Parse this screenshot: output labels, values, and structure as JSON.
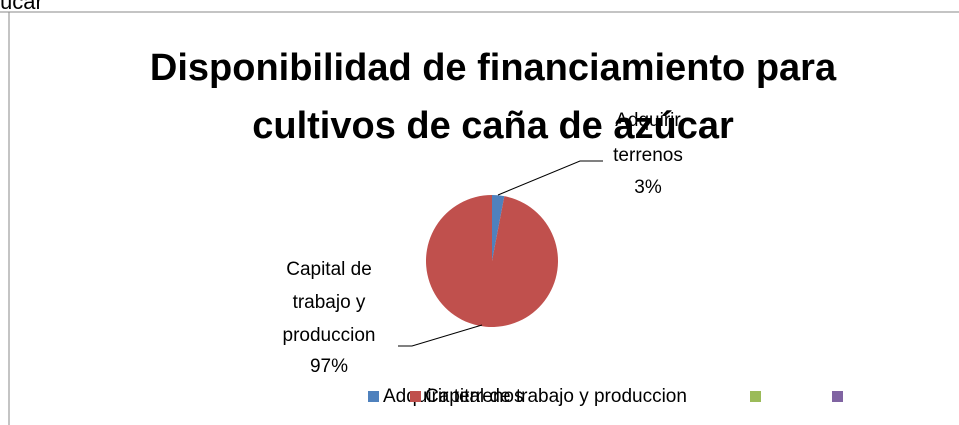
{
  "caption_fragment": "úcar",
  "chart_data": {
    "type": "pie",
    "title": "Disponibilidad de financiamiento para cultivos de caña de azúcar",
    "categories": [
      "Adquirir terrenos",
      "Capital de trabajo y produccion",
      null,
      null
    ],
    "values": [
      3,
      97,
      null,
      null
    ],
    "value_labels": [
      "3%",
      "97%",
      null,
      null
    ],
    "colors": [
      "#4f81bd",
      "#c0504d",
      "#9bbb59",
      "#8064a2"
    ],
    "legend": "bottom"
  }
}
